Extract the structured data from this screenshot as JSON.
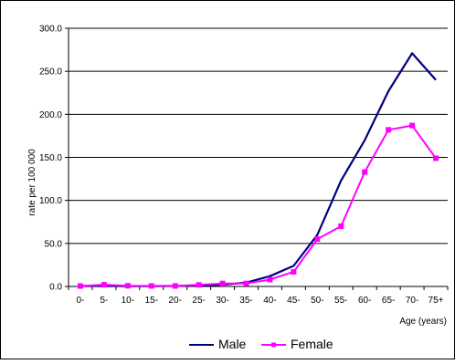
{
  "chart_data": {
    "type": "line",
    "title": "",
    "xlabel": "Age (years)",
    "ylabel": "rate per 100 000",
    "categories": [
      "0-",
      "5-",
      "10-",
      "15-",
      "20-",
      "25-",
      "30-",
      "35-",
      "40-",
      "45-",
      "50-",
      "55-",
      "60-",
      "65-",
      "70-",
      "75+"
    ],
    "yticks": [
      "0.0",
      "50.0",
      "100.0",
      "150.0",
      "200.0",
      "250.0",
      "300.0"
    ],
    "ylim": [
      0,
      300
    ],
    "grid": "horizontal",
    "legend_position": "bottom",
    "series": [
      {
        "name": "Male",
        "color": "#000080",
        "marker": "none",
        "values": [
          0.5,
          0.5,
          0.4,
          0.4,
          0.5,
          1.2,
          2.0,
          4.5,
          12.0,
          24.0,
          60.0,
          123.0,
          170.0,
          227.0,
          271.0,
          240.0
        ]
      },
      {
        "name": "Female",
        "color": "#ff00ff",
        "marker": "square",
        "values": [
          0.5,
          2.0,
          0.8,
          0.6,
          0.6,
          1.8,
          3.5,
          3.5,
          8.0,
          17.0,
          55.0,
          70.0,
          133.0,
          182.0,
          187.0,
          149.0
        ]
      }
    ]
  }
}
